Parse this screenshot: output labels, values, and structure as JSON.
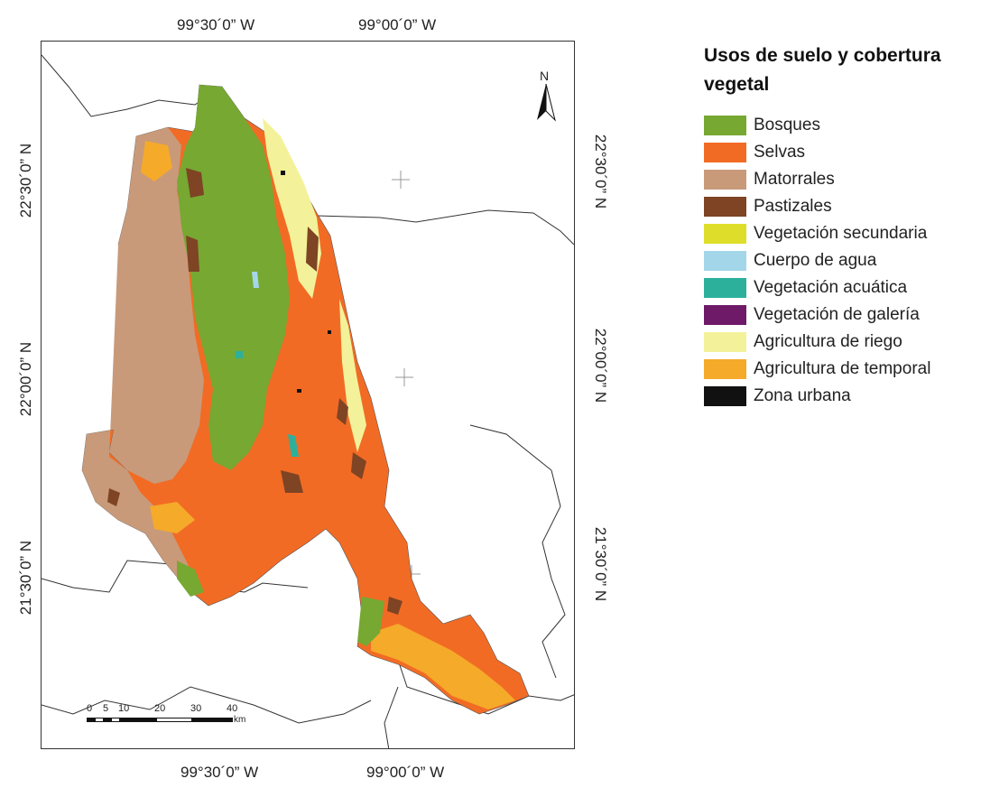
{
  "coordinates": {
    "top_left": "99°30´0” W",
    "top_right": "99°00´0” W",
    "bottom_left": "99°30´0” W",
    "bottom_right": "99°00´0” W",
    "left_upper": "22°30´0” N",
    "left_middle": "22°00´0” N",
    "left_lower": "21°30´0” N",
    "right_upper": "22°30´0” N",
    "right_middle": "22°00´0” N",
    "right_lower": "21°30´0” N"
  },
  "north_arrow": {
    "label": "N",
    "icon": "north-arrow-icon"
  },
  "scale_bar": {
    "ticks": [
      "0",
      "5",
      "10",
      "20",
      "30",
      "40"
    ],
    "unit": "km"
  },
  "legend": {
    "title": "Usos de suelo y cobertura vegetal",
    "items": [
      {
        "label": "Bosques",
        "color": "#76a832"
      },
      {
        "label": "Selvas",
        "color": "#f26b24"
      },
      {
        "label": "Matorrales",
        "color": "#c89a7a"
      },
      {
        "label": "Pastizales",
        "color": "#7e4424"
      },
      {
        "label": "Vegetación secundaria",
        "color": "#dede2a"
      },
      {
        "label": "Cuerpo de agua",
        "color": "#a4d6ea"
      },
      {
        "label": "Vegetación acuática",
        "color": "#2cb09c"
      },
      {
        "label": "Vegetación de galería",
        "color": "#6e1a68"
      },
      {
        "label": "Agricultura de riego",
        "color": "#f3f29a"
      },
      {
        "label": "Agricultura de temporal",
        "color": "#f5aa2a"
      },
      {
        "label": "Zona urbana",
        "color": "#111111"
      }
    ]
  }
}
